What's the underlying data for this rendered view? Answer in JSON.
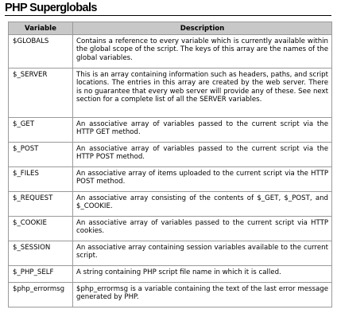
{
  "page": {
    "title": "PHP Superglobals"
  },
  "table": {
    "headers": [
      "Variable",
      "Description"
    ],
    "rows": [
      {
        "variable": "$GLOBALS",
        "description": "Contains a reference to every variable which is currently available within the global scope of the script. The keys of this array are the names of the global variables."
      },
      {
        "variable": "$_SERVER",
        "description": "This is an array containing information such as headers, paths, and script locations. The entries in this array are created by the web server. There is no guarantee that every web server will provide any of these. See next section for a complete list of all the SERVER variables."
      },
      {
        "variable": "$_GET",
        "description": "An associative array of variables passed to the current script via the HTTP GET method."
      },
      {
        "variable": "$_POST",
        "description": "An associative array of variables passed to the current script via the HTTP POST method."
      },
      {
        "variable": "$_FILES",
        "description": "An associative array of items uploaded to the current script via the HTTP POST method."
      },
      {
        "variable": "$_REQUEST",
        "description": "An associative array consisting of the contents of $_GET, $_POST, and $_COOKIE."
      },
      {
        "variable": "$_COOKIE",
        "description": "An associative array of variables passed to the current script via HTTP cookies."
      },
      {
        "variable": "$_SESSION",
        "description": "An associative array containing session variables available to the current script."
      },
      {
        "variable": "$_PHP_SELF",
        "description": "A string containing PHP script file name in which it is called."
      },
      {
        "variable": "$php_errormsg",
        "description": "$php_errormsg is a variable containing the text of the last error message generated by PHP."
      }
    ]
  },
  "colors": {
    "header_background": "#c8c8c8",
    "grid_border": "#9a9a9a",
    "text": "#000000"
  }
}
